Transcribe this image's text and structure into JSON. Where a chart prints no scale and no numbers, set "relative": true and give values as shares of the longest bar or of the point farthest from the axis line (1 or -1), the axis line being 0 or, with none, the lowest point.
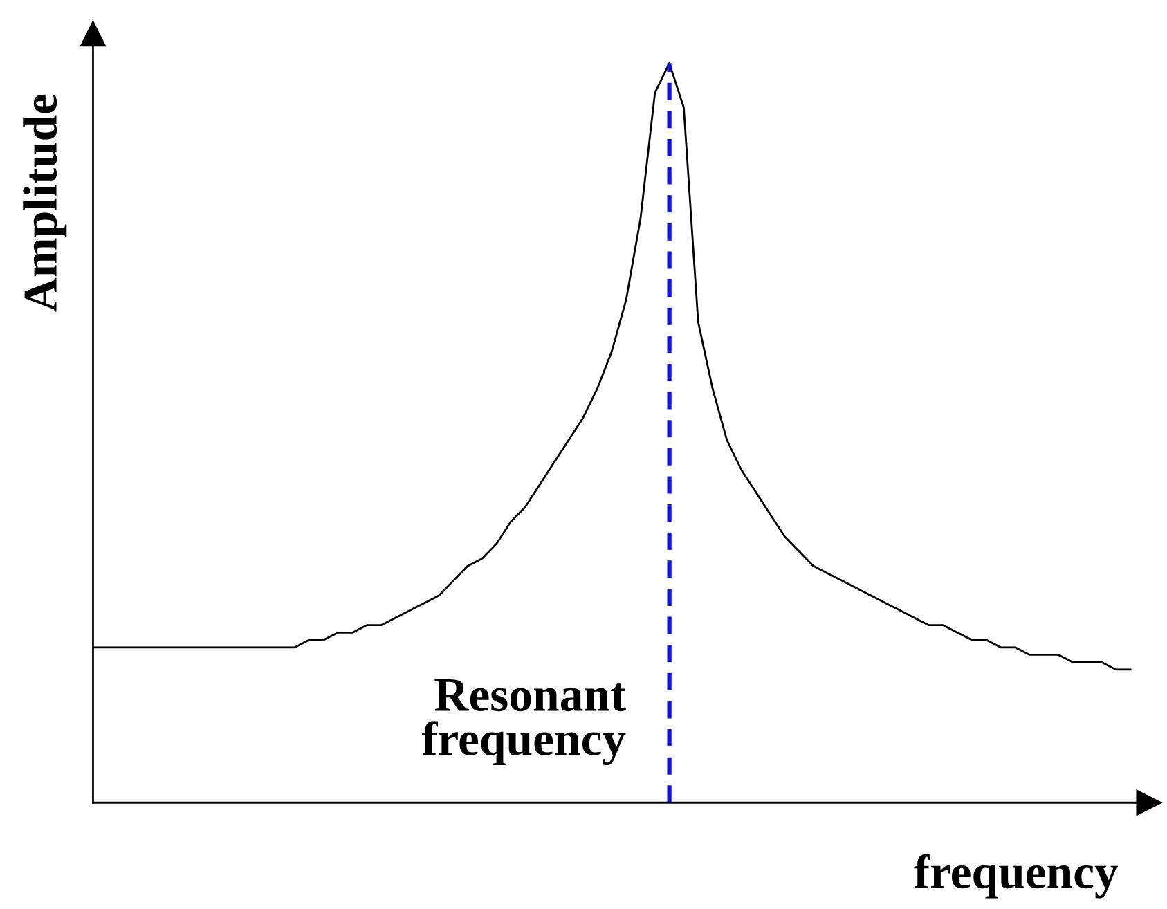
{
  "chart_data": {
    "type": "line",
    "relative": true,
    "xlabel": "frequency",
    "ylabel": "Amplitude",
    "categories": [
      null,
      null,
      null,
      null,
      null,
      null,
      null,
      null,
      null,
      null,
      null,
      null,
      null,
      null,
      null,
      null,
      null,
      null,
      null,
      null,
      null,
      null,
      null,
      null,
      null,
      null,
      null,
      null,
      null,
      null,
      null,
      null,
      null,
      null,
      null,
      null,
      null,
      null,
      null,
      null,
      null,
      null,
      null,
      null,
      null,
      null,
      null,
      null,
      null,
      null,
      null,
      null,
      null,
      null,
      null,
      null,
      null,
      null,
      null,
      null,
      null,
      null,
      null,
      null,
      null,
      null,
      null,
      null,
      null,
      null,
      null,
      null,
      null
    ],
    "series": [
      {
        "color": "#000000",
        "values": [
          0.21,
          0.21,
          0.21,
          0.21,
          0.21,
          0.21,
          0.21,
          0.21,
          0.21,
          0.21,
          0.21,
          0.21,
          0.21,
          0.21,
          0.21,
          0.22,
          0.22,
          0.23,
          0.23,
          0.24,
          0.24,
          0.25,
          0.26,
          0.27,
          0.28,
          0.3,
          0.32,
          0.33,
          0.35,
          0.38,
          0.4,
          0.43,
          0.46,
          0.49,
          0.52,
          0.56,
          0.61,
          0.68,
          0.79,
          0.96,
          1,
          0.94,
          0.65,
          0.56,
          0.49,
          0.45,
          0.42,
          0.39,
          0.36,
          0.34,
          0.32,
          0.31,
          0.3,
          0.29,
          0.28,
          0.27,
          0.26,
          0.25,
          0.24,
          0.24,
          0.23,
          0.22,
          0.22,
          0.21,
          0.21,
          0.2,
          0.2,
          0.2,
          0.19,
          0.19,
          0.19,
          0.18,
          0.18
        ]
      }
    ],
    "annotations": [
      "Resonant\nfrequency"
    ],
    "legend": false,
    "marker": "none",
    "line_style": "solid"
  }
}
